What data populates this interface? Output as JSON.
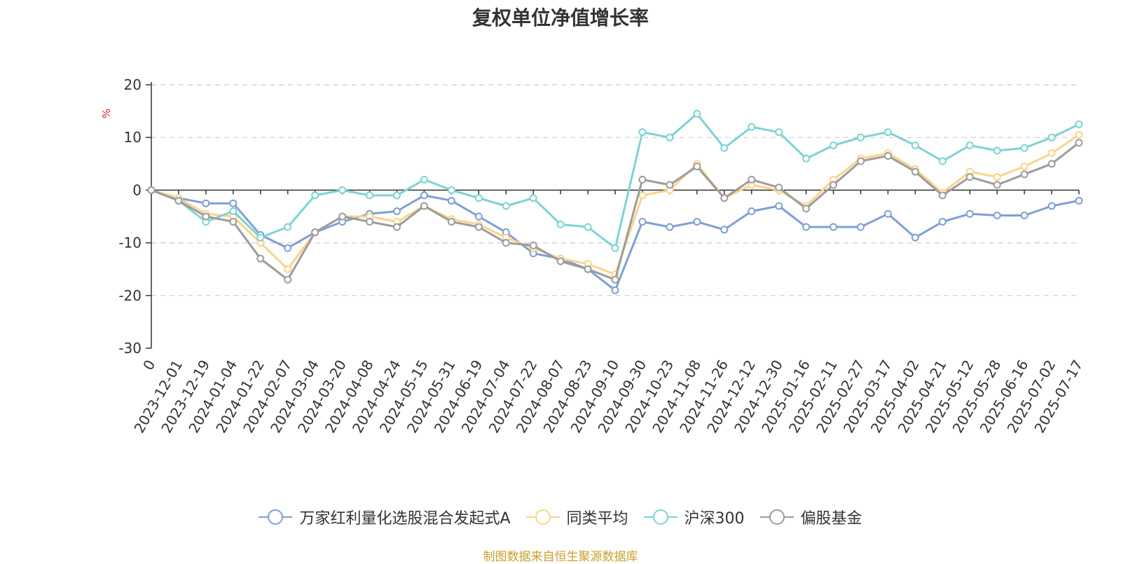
{
  "chart_data": {
    "type": "line",
    "title": "复权单位净值增长率",
    "ylabel": "%",
    "ylim": [
      -30,
      20
    ],
    "y_ticks": [
      20,
      10,
      0,
      -10,
      -20,
      -30
    ],
    "grid": true,
    "legend_position": "bottom",
    "x_tick_labels": [
      "0",
      "2023-12-01",
      "2023-12-19",
      "2024-01-04",
      "2024-01-22",
      "2024-02-07",
      "2024-03-04",
      "2024-03-20",
      "2024-04-08",
      "2024-04-24",
      "2024-05-15",
      "2024-05-31",
      "2024-06-19",
      "2024-07-04",
      "2024-07-22",
      "2024-08-07",
      "2024-08-23",
      "2024-09-10",
      "2024-09-30",
      "2024-10-23",
      "2024-11-08",
      "2024-11-26",
      "2024-12-12",
      "2024-12-30",
      "2025-01-16",
      "2025-02-11",
      "2025-02-27",
      "2025-03-17",
      "2025-04-02",
      "2025-04-21",
      "2025-05-12",
      "2025-05-28",
      "2025-06-16",
      "2025-07-02",
      "2025-07-17"
    ],
    "series": [
      {
        "name": "万家红利量化选股混合发起式A",
        "color": "#7f9fd4",
        "values": [
          0,
          -1.5,
          -2.5,
          -2.5,
          -8.5,
          -11,
          -8,
          -6,
          -4.5,
          -4,
          -1,
          -2,
          -5,
          -8,
          -12,
          -13,
          -15,
          -19,
          -6,
          -7,
          -6,
          -7.5,
          -4,
          -3,
          -7,
          -7,
          -7,
          -4.5,
          -9,
          -6,
          -4.5,
          -4.8,
          -4.8,
          -3,
          -2
        ]
      },
      {
        "name": "同类平均",
        "color": "#f9d48a",
        "values": [
          0,
          -1.5,
          -4.5,
          -5,
          -10,
          -15,
          -8,
          -5,
          -5,
          -6,
          -3,
          -5.5,
          -6.5,
          -9,
          -11,
          -13,
          -14,
          -16,
          -1,
          0,
          5,
          -1.5,
          1,
          0,
          -3,
          2,
          6,
          7,
          4,
          -0.5,
          3.5,
          2.5,
          4.5,
          7,
          10.5
        ]
      },
      {
        "name": "沪深300",
        "color": "#7dd3d3",
        "values": [
          0,
          -2,
          -6,
          -4,
          -9,
          -7,
          -1,
          0,
          -1,
          -1,
          2,
          0,
          -1.5,
          -3,
          -1.5,
          -6.5,
          -7,
          -11,
          11,
          10,
          14.5,
          8,
          12,
          11,
          6,
          8.5,
          10,
          11,
          8.5,
          5.5,
          8.5,
          7.5,
          8,
          10,
          12.5
        ]
      },
      {
        "name": "偏股基金",
        "color": "#9c9c9c",
        "values": [
          0,
          -2,
          -5,
          -6,
          -13,
          -17,
          -8,
          -5,
          -6,
          -7,
          -3,
          -6,
          -7,
          -10,
          -10.5,
          -13.5,
          -15,
          -17,
          2,
          1,
          4.5,
          -1.5,
          2,
          0.5,
          -3.5,
          1,
          5.5,
          6.5,
          3.5,
          -1,
          2.5,
          1,
          3,
          5,
          9
        ]
      }
    ]
  },
  "source_note": "制图数据来自恒生聚源数据库"
}
